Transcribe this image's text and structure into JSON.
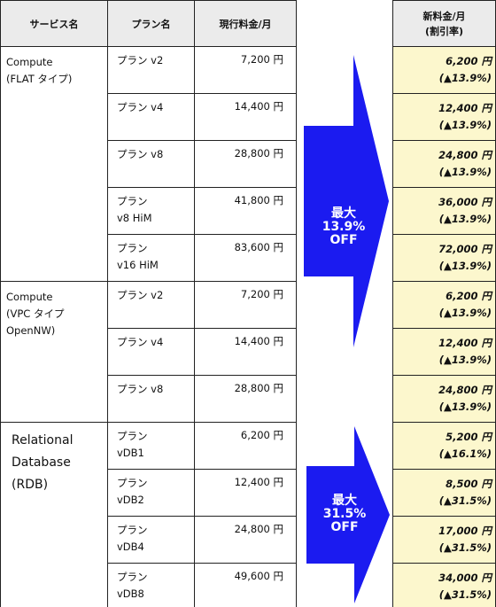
{
  "header": {
    "service": "サービス名",
    "plan": "プラン名",
    "current_price": "現行料金/月",
    "new_price": "新料金/月\n(割引率)"
  },
  "groups": [
    {
      "service": "Compute\n(FLAT タイプ)"
    },
    {
      "service": "Compute\n(VPC タイプ\n OpenNW)"
    },
    {
      "service": "Relational\nDatabase\n(RDB)"
    }
  ],
  "rows": [
    {
      "plan": "プラン v2",
      "current": "7,200 円",
      "new_price": "6,200 円",
      "discount": "(▲13.9%)"
    },
    {
      "plan": "プラン v4",
      "current": "14,400 円",
      "new_price": "12,400 円",
      "discount": "(▲13.9%)"
    },
    {
      "plan": "プラン v8",
      "current": "28,800 円",
      "new_price": "24,800 円",
      "discount": "(▲13.9%)"
    },
    {
      "plan": "プラン\nv8 HiM",
      "current": "41,800 円",
      "new_price": "36,000 円",
      "discount": "(▲13.9%)"
    },
    {
      "plan": "プラン\nv16 HiM",
      "current": "83,600 円",
      "new_price": "72,000 円",
      "discount": "(▲13.9%)"
    },
    {
      "plan": "プラン v2",
      "current": "7,200 円",
      "new_price": "6,200 円",
      "discount": "(▲13.9%)"
    },
    {
      "plan": "プラン v4",
      "current": "14,400 円",
      "new_price": "12,400 円",
      "discount": "(▲13.9%)"
    },
    {
      "plan": "プラン v8",
      "current": "28,800 円",
      "new_price": "24,800 円",
      "discount": "(▲13.9%)"
    },
    {
      "plan": "プラン\nvDB1",
      "current": "6,200 円",
      "new_price": "5,200 円",
      "discount": "(▲16.1%)"
    },
    {
      "plan": "プラン\nvDB2",
      "current": "12,400 円",
      "new_price": "8,500 円",
      "discount": "(▲31.5%)"
    },
    {
      "plan": "プラン\nvDB4",
      "current": "24,800 円",
      "new_price": "17,000 円",
      "discount": "(▲31.5%)"
    },
    {
      "plan": "プラン\nvDB8",
      "current": "49,600 円",
      "new_price": "34,000 円",
      "discount": "(▲31.5%)"
    }
  ],
  "arrows": [
    {
      "text": "最大\n13.9%\nOFF"
    },
    {
      "text": "最大\n31.5%\nOFF"
    }
  ],
  "colors": {
    "arrow": "#1b1bf0",
    "new_price_bg": "#fcf7cd",
    "header_bg": "#ebebeb"
  }
}
